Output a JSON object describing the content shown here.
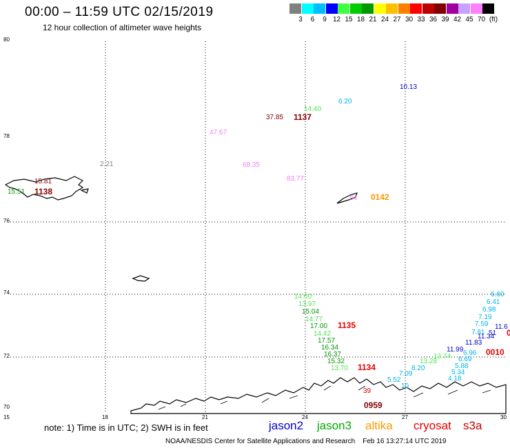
{
  "header": {
    "title": "00:00 – 11:59 UTC 02/15/2019",
    "subtitle": "12 hour collection of altimeter wave heights"
  },
  "legend": {
    "colors": [
      "#808080",
      "#00ffff",
      "#00bfff",
      "#0000ff",
      "#40ff40",
      "#00cc00",
      "#009900",
      "#ffff00",
      "#ffbf00",
      "#ff8000",
      "#ff0000",
      "#bf0000",
      "#800000",
      "#a000a0",
      "#c8a0ff",
      "#ff80ff",
      "#000000"
    ],
    "labels": [
      "3",
      "6",
      "9",
      "12",
      "15",
      "18",
      "21",
      "24",
      "27",
      "30",
      "33",
      "36",
      "39",
      "42",
      "45",
      "70",
      "(ft)"
    ]
  },
  "axes": {
    "lat_labels": [
      "80",
      "78",
      "76",
      "74",
      "72",
      "70"
    ],
    "lon_labels": [
      "15",
      "18",
      "21",
      "24",
      "27",
      "30"
    ]
  },
  "observations": [
    {
      "text": "10.13",
      "color": "#0000c8"
    },
    {
      "text": "6.20",
      "color": "#00b4e6"
    },
    {
      "text": "14.40",
      "color": "#50e650"
    },
    {
      "text": "37.85",
      "color": "#800000"
    },
    {
      "text": "47.67",
      "color": "#f080f0"
    },
    {
      "text": "2.21",
      "color": "#808080"
    },
    {
      "text": "68.35",
      "color": "#f080f0"
    },
    {
      "text": "83.77",
      "color": "#f080f0"
    },
    {
      "text": "15.51",
      "color": "#009600"
    },
    {
      "text": "15.81",
      "color": "#800000"
    },
    {
      "text": "64",
      "color": "#f080f0"
    },
    {
      "text": "14.00",
      "color": "#50e650"
    },
    {
      "text": "13.97",
      "color": "#50e650"
    },
    {
      "text": "15.04",
      "color": "#009600"
    },
    {
      "text": "14.77",
      "color": "#50e650"
    },
    {
      "text": "17.00",
      "color": "#009600"
    },
    {
      "text": "14.42",
      "color": "#50e650"
    },
    {
      "text": "17.57",
      "color": "#009600"
    },
    {
      "text": "16.34",
      "color": "#009600"
    },
    {
      "text": "16.37",
      "color": "#009600"
    },
    {
      "text": "15.32",
      "color": "#009600"
    },
    {
      "text": "13.70",
      "color": "#50e650"
    },
    {
      "text": "6.60",
      "color": "#00b4e6"
    },
    {
      "text": "6.41",
      "color": "#00b4e6"
    },
    {
      "text": "6.98",
      "color": "#00b4e6"
    },
    {
      "text": "7.19",
      "color": "#00b4e6"
    },
    {
      "text": "7.59",
      "color": "#00b4e6"
    },
    {
      "text": "7.81",
      "color": "#00b4e6"
    },
    {
      "text": "51",
      "color": "#0000c8"
    },
    {
      "text": "11.6",
      "color": "#0000c8"
    },
    {
      "text": "11.34",
      "color": "#0000c8"
    },
    {
      "text": "11.83",
      "color": "#0000c8"
    },
    {
      "text": "11.99",
      "color": "#0000c8"
    },
    {
      "text": "6.96",
      "color": "#00b4e6"
    },
    {
      "text": "6.69",
      "color": "#00b4e6"
    },
    {
      "text": "5.88",
      "color": "#00b4e6"
    },
    {
      "text": "5.34",
      "color": "#00b4e6"
    },
    {
      "text": "4.18",
      "color": "#00b4e6"
    },
    {
      "text": "13.28",
      "color": "#50e650"
    },
    {
      "text": "13.74",
      "color": "#50e650"
    },
    {
      "text": "8.20",
      "color": "#00b4e6"
    },
    {
      "text": "7.09",
      "color": "#00b4e6"
    },
    {
      "text": "5.52",
      "color": "#00b4e6"
    },
    {
      "text": "10",
      "color": "#00b4e6"
    },
    {
      "text": "39",
      "color": "#c80000"
    }
  ],
  "times": [
    {
      "text": "1137",
      "color": "#800000"
    },
    {
      "text": "1138",
      "color": "#800000"
    },
    {
      "text": "0142",
      "color": "#ff9600"
    },
    {
      "text": "1135",
      "color": "#e60000"
    },
    {
      "text": "1134",
      "color": "#e60000"
    },
    {
      "text": "0010",
      "color": "#e60000"
    },
    {
      "text": "0959",
      "color": "#800000"
    },
    {
      "text": "0",
      "color": "#e60000"
    }
  ],
  "note": "note: 1) Time is in UTC; 2) SWH is in feet",
  "satellites": [
    {
      "name": "jason2",
      "color": "#0000d0"
    },
    {
      "name": "jason3",
      "color": "#00aa00"
    },
    {
      "name": "altika",
      "color": "#ff9600"
    },
    {
      "name": "cryosat",
      "color": "#e60000"
    },
    {
      "name": "s3a",
      "color": "#c80000"
    }
  ],
  "footer": "NOAA/NESDIS Center for Satellite Applications and Research    Feb 16 13:27:14 UTC 2019"
}
